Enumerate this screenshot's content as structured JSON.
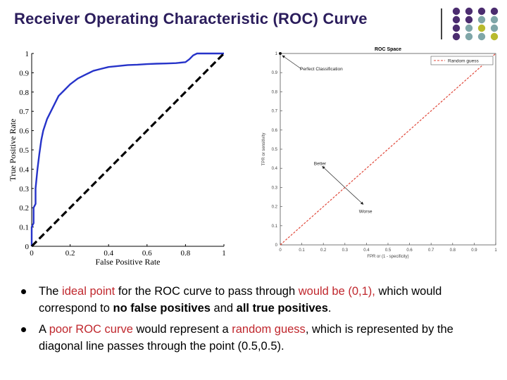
{
  "slide": {
    "title": "Receiver Operating Characteristic (ROC) Curve"
  },
  "colors": {
    "purple": "#4b2c6f",
    "teal": "#7fa6a8",
    "olive": "#b8ba2e",
    "roc_curve": "#2633c9",
    "random_line": "#e0483a",
    "highlight": "#c0272d"
  },
  "chart_data": [
    {
      "type": "line",
      "title": "",
      "xlabel": "False Positive Rate",
      "ylabel": "True Positive Rate",
      "xlim": [
        0,
        1
      ],
      "ylim": [
        0,
        1
      ],
      "x_ticks": [
        "0",
        "0.2",
        "0.4",
        "0.6",
        "0.8",
        "1"
      ],
      "y_ticks": [
        "0",
        "0.1",
        "0.2",
        "0.3",
        "0.4",
        "0.5",
        "0.6",
        "0.7",
        "0.8",
        "0.9",
        "1"
      ],
      "grid": false,
      "series": [
        {
          "style": "solid",
          "color": "#2633c9",
          "x": [
            0,
            0,
            0.01,
            0.01,
            0.02,
            0.02,
            0.03,
            0.04,
            0.05,
            0.06,
            0.08,
            0.1,
            0.12,
            0.14,
            0.17,
            0.2,
            0.24,
            0.28,
            0.32,
            0.36,
            0.4,
            0.45,
            0.5,
            0.55,
            0.6,
            0.65,
            0.7,
            0.75,
            0.8,
            0.82,
            0.84,
            0.86,
            0.9,
            0.95,
            1.0
          ],
          "y": [
            0,
            0.1,
            0.12,
            0.2,
            0.22,
            0.3,
            0.4,
            0.48,
            0.55,
            0.6,
            0.66,
            0.7,
            0.74,
            0.78,
            0.81,
            0.84,
            0.87,
            0.89,
            0.91,
            0.92,
            0.93,
            0.935,
            0.94,
            0.942,
            0.945,
            0.947,
            0.948,
            0.95,
            0.955,
            0.97,
            0.99,
            1.0,
            1.0,
            1.0,
            1.0
          ]
        },
        {
          "style": "dashed",
          "color": "#000000",
          "x": [
            0,
            1
          ],
          "y": [
            0,
            1
          ]
        }
      ]
    },
    {
      "type": "line",
      "title": "ROC Space",
      "xlabel": "FPR or (1 - specificity)",
      "ylabel": "TPR or sensitivity",
      "xlim": [
        0,
        1
      ],
      "ylim": [
        0,
        1
      ],
      "x_ticks": [
        "0",
        "0.1",
        "0.2",
        "0.3",
        "0.4",
        "0.5",
        "0.6",
        "0.7",
        "0.8",
        "0.9",
        "1"
      ],
      "y_ticks": [
        "0",
        "0.1",
        "0.2",
        "0.3",
        "0.4",
        "0.5",
        "0.6",
        "0.7",
        "0.8",
        "0.9",
        "1"
      ],
      "grid": false,
      "legend": {
        "position": "top-right",
        "entries": [
          "Random guess"
        ]
      },
      "series": [
        {
          "name": "Random guess",
          "style": "dashed",
          "color": "#e0483a",
          "x": [
            0,
            1
          ],
          "y": [
            0,
            1
          ]
        }
      ],
      "points": [
        {
          "label": "Perfect Classification",
          "x": 0,
          "y": 1
        }
      ],
      "annotations": [
        {
          "text": "Perfect Classification",
          "target": [
            0,
            1
          ]
        },
        {
          "text": "Better",
          "target": [
            0.3,
            0.3
          ]
        },
        {
          "text": "Worse",
          "target": [
            0.3,
            0.3
          ]
        }
      ]
    }
  ],
  "bullets": [
    [
      {
        "t": "The ",
        "s": ""
      },
      {
        "t": "ideal point",
        "s": "hl"
      },
      {
        "t": " for the ROC curve to pass through ",
        "s": ""
      },
      {
        "t": "would be (0,1),",
        "s": "hl"
      },
      {
        "t": " which would correspond to ",
        "s": ""
      },
      {
        "t": "no false positives",
        "s": "b"
      },
      {
        "t": " and ",
        "s": ""
      },
      {
        "t": "all true positives",
        "s": "b"
      },
      {
        "t": ".",
        "s": ""
      }
    ],
    [
      {
        "t": "A ",
        "s": ""
      },
      {
        "t": "poor ROC curve",
        "s": "hl"
      },
      {
        "t": " would represent a ",
        "s": ""
      },
      {
        "t": "random guess",
        "s": "hl"
      },
      {
        "t": ", which is represented by the diagonal line passes through the point (0.5,0.5).",
        "s": ""
      }
    ]
  ]
}
